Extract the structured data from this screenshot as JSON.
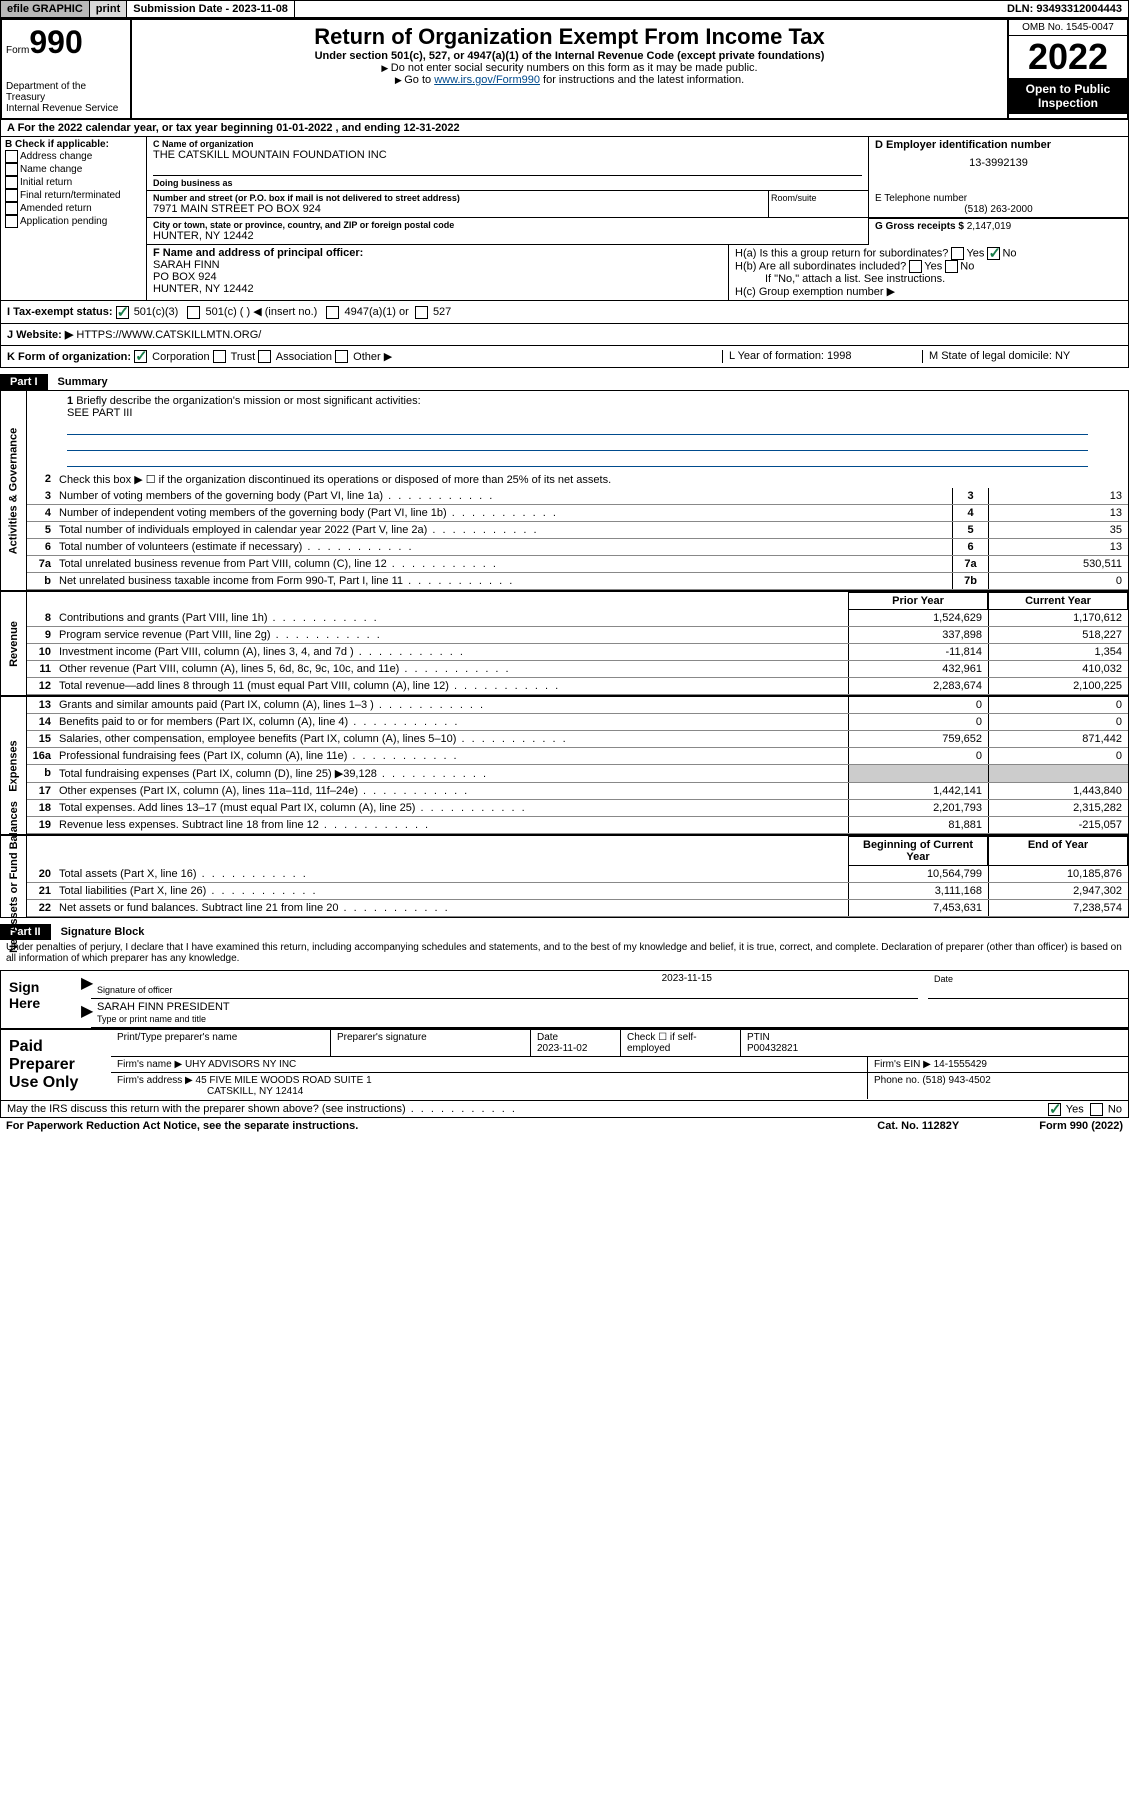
{
  "topbar": {
    "efile": "efile GRAPHIC",
    "print": "print",
    "sub_label": "Submission Date - 2023-11-08",
    "dln": "DLN: 93493312004443"
  },
  "header": {
    "form_word": "Form",
    "form_num": "990",
    "title": "Return of Organization Exempt From Income Tax",
    "subtitle": "Under section 501(c), 527, or 4947(a)(1) of the Internal Revenue Code (except private foundations)",
    "note1": "Do not enter social security numbers on this form as it may be made public.",
    "note2_pre": "Go to ",
    "note2_link": "www.irs.gov/Form990",
    "note2_post": " for instructions and the latest information.",
    "dept": "Department of the Treasury\nInternal Revenue Service",
    "omb": "OMB No. 1545-0047",
    "year": "2022",
    "open": "Open to Public Inspection"
  },
  "row_a": "A For the 2022 calendar year, or tax year beginning 01-01-2022   , and ending 12-31-2022",
  "col_b": {
    "hdr": "B Check if applicable:",
    "items": [
      "Address change",
      "Name change",
      "Initial return",
      "Final return/terminated",
      "Amended return",
      "Application pending"
    ]
  },
  "col_c": {
    "name_label": "C Name of organization",
    "name": "THE CATSKILL MOUNTAIN FOUNDATION INC",
    "dba_label": "Doing business as",
    "addr_label": "Number and street (or P.O. box if mail is not delivered to street address)",
    "addr": "7971 MAIN STREET PO BOX 924",
    "room_label": "Room/suite",
    "city_label": "City or town, state or province, country, and ZIP or foreign postal code",
    "city": "HUNTER, NY  12442"
  },
  "col_d": {
    "label": "D Employer identification number",
    "val": "13-3992139"
  },
  "col_e": {
    "label": "E Telephone number",
    "val": "(518) 263-2000"
  },
  "col_g": {
    "label": "G Gross receipts $ ",
    "val": "2,147,019"
  },
  "col_f": {
    "label": "F  Name and address of principal officer:",
    "line1": "SARAH FINN",
    "line2": "PO BOX 924",
    "line3": "HUNTER, NY  12442"
  },
  "col_h": {
    "a": "H(a)  Is this a group return for subordinates?",
    "b": "H(b)  Are all subordinates included?",
    "b_note": "If \"No,\" attach a list. See instructions.",
    "c": "H(c)  Group exemption number ▶"
  },
  "row_i": {
    "label": "I    Tax-exempt status:",
    "opts": [
      "501(c)(3)",
      "501(c) (  ) ◀ (insert no.)",
      "4947(a)(1) or",
      "527"
    ]
  },
  "row_j": {
    "label": "J   Website: ▶",
    "val": "HTTPS://WWW.CATSKILLMTN.ORG/"
  },
  "row_k": {
    "label": "K Form of organization:",
    "opts": [
      "Corporation",
      "Trust",
      "Association",
      "Other ▶"
    ],
    "l": "L Year of formation: 1998",
    "m": "M State of legal domicile: NY"
  },
  "part1": {
    "hdr": "Part I",
    "title": "Summary"
  },
  "gov": {
    "side": "Activities & Governance",
    "q1": "Briefly describe the organization's mission or most significant activities:",
    "q1_ans": "SEE PART III",
    "q2": "Check this box ▶ ☐  if the organization discontinued its operations or disposed of more than 25% of its net assets.",
    "rows": [
      {
        "n": "3",
        "t": "Number of voting members of the governing body (Part VI, line 1a)",
        "b": "3",
        "v": "13"
      },
      {
        "n": "4",
        "t": "Number of independent voting members of the governing body (Part VI, line 1b)",
        "b": "4",
        "v": "13"
      },
      {
        "n": "5",
        "t": "Total number of individuals employed in calendar year 2022 (Part V, line 2a)",
        "b": "5",
        "v": "35"
      },
      {
        "n": "6",
        "t": "Total number of volunteers (estimate if necessary)",
        "b": "6",
        "v": "13"
      },
      {
        "n": "7a",
        "t": "Total unrelated business revenue from Part VIII, column (C), line 12",
        "b": "7a",
        "v": "530,511"
      },
      {
        "n": "b",
        "t": "Net unrelated business taxable income from Form 990-T, Part I, line 11",
        "b": "7b",
        "v": "0"
      }
    ]
  },
  "rev": {
    "side": "Revenue",
    "hdr_prior": "Prior Year",
    "hdr_curr": "Current Year",
    "rows": [
      {
        "n": "8",
        "t": "Contributions and grants (Part VIII, line 1h)",
        "p": "1,524,629",
        "c": "1,170,612"
      },
      {
        "n": "9",
        "t": "Program service revenue (Part VIII, line 2g)",
        "p": "337,898",
        "c": "518,227"
      },
      {
        "n": "10",
        "t": "Investment income (Part VIII, column (A), lines 3, 4, and 7d )",
        "p": "-11,814",
        "c": "1,354"
      },
      {
        "n": "11",
        "t": "Other revenue (Part VIII, column (A), lines 5, 6d, 8c, 9c, 10c, and 11e)",
        "p": "432,961",
        "c": "410,032"
      },
      {
        "n": "12",
        "t": "Total revenue—add lines 8 through 11 (must equal Part VIII, column (A), line 12)",
        "p": "2,283,674",
        "c": "2,100,225"
      }
    ]
  },
  "exp": {
    "side": "Expenses",
    "rows": [
      {
        "n": "13",
        "t": "Grants and similar amounts paid (Part IX, column (A), lines 1–3 )",
        "p": "0",
        "c": "0"
      },
      {
        "n": "14",
        "t": "Benefits paid to or for members (Part IX, column (A), line 4)",
        "p": "0",
        "c": "0"
      },
      {
        "n": "15",
        "t": "Salaries, other compensation, employee benefits (Part IX, column (A), lines 5–10)",
        "p": "759,652",
        "c": "871,442"
      },
      {
        "n": "16a",
        "t": "Professional fundraising fees (Part IX, column (A), line 11e)",
        "p": "0",
        "c": "0"
      },
      {
        "n": "b",
        "t": "Total fundraising expenses (Part IX, column (D), line 25) ▶39,128",
        "p": "",
        "c": ""
      },
      {
        "n": "17",
        "t": "Other expenses (Part IX, column (A), lines 11a–11d, 11f–24e)",
        "p": "1,442,141",
        "c": "1,443,840"
      },
      {
        "n": "18",
        "t": "Total expenses. Add lines 13–17 (must equal Part IX, column (A), line 25)",
        "p": "2,201,793",
        "c": "2,315,282"
      },
      {
        "n": "19",
        "t": "Revenue less expenses. Subtract line 18 from line 12",
        "p": "81,881",
        "c": "-215,057"
      }
    ]
  },
  "net": {
    "side": "Net Assets or Fund Balances",
    "hdr_begin": "Beginning of Current Year",
    "hdr_end": "End of Year",
    "rows": [
      {
        "n": "20",
        "t": "Total assets (Part X, line 16)",
        "p": "10,564,799",
        "c": "10,185,876"
      },
      {
        "n": "21",
        "t": "Total liabilities (Part X, line 26)",
        "p": "3,111,168",
        "c": "2,947,302"
      },
      {
        "n": "22",
        "t": "Net assets or fund balances. Subtract line 21 from line 20",
        "p": "7,453,631",
        "c": "7,238,574"
      }
    ]
  },
  "part2": {
    "hdr": "Part II",
    "title": "Signature Block"
  },
  "sig": {
    "penalty": "Under penalties of perjury, I declare that I have examined this return, including accompanying schedules and statements, and to the best of my knowledge and belief, it is true, correct, and complete. Declaration of preparer (other than officer) is based on all information of which preparer has any knowledge.",
    "sign_here": "Sign Here",
    "sig_officer": "Signature of officer",
    "date": "2023-11-15",
    "date_label": "Date",
    "name": "SARAH FINN  PRESIDENT",
    "name_label": "Type or print name and title"
  },
  "paid": {
    "label": "Paid Preparer Use Only",
    "h1": "Print/Type preparer's name",
    "h2": "Preparer's signature",
    "h3": "Date",
    "h3v": "2023-11-02",
    "h4": "Check ☐ if self-employed",
    "h5": "PTIN",
    "h5v": "P00432821",
    "firm_label": "Firm's name    ▶",
    "firm": "UHY ADVISORS NY INC",
    "ein_label": "Firm's EIN ▶",
    "ein": "14-1555429",
    "addr_label": "Firm's address ▶",
    "addr1": "45 FIVE MILE WOODS ROAD SUITE 1",
    "addr2": "CATSKILL, NY  12414",
    "phone_label": "Phone no.",
    "phone": "(518) 943-4502"
  },
  "discuss": "May the IRS discuss this return with the preparer shown above? (see instructions)",
  "footer": {
    "left": "For Paperwork Reduction Act Notice, see the separate instructions.",
    "mid": "Cat. No. 11282Y",
    "right": "Form 990 (2022)"
  },
  "colors": {
    "link": "#004b8d",
    "check": "#197d4a"
  }
}
